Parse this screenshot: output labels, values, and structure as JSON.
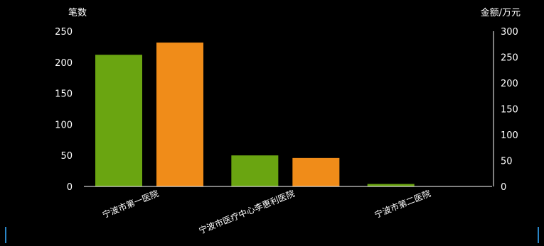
{
  "chart_data": {
    "type": "bar",
    "categories": [
      "宁波市第一医院",
      "宁波市医疗中心李惠利医院",
      "宁波市第二医院"
    ],
    "series": [
      {
        "axis": "left",
        "color": "#6aa511",
        "values": [
          212,
          50,
          4
        ]
      },
      {
        "axis": "right",
        "color": "#f08c19",
        "values": [
          278,
          55,
          0
        ]
      }
    ],
    "ylabel_left": "笔数",
    "ylabel_right": "金额/万元",
    "ylim_left": [
      0,
      250
    ],
    "ylim_right": [
      0,
      300
    ],
    "yticks_left": [
      "0",
      "50",
      "100",
      "150",
      "200",
      "250"
    ],
    "yticks_right": [
      "0",
      "50",
      "100",
      "150",
      "200",
      "250",
      "300"
    ],
    "grid": false,
    "legend": "none"
  }
}
